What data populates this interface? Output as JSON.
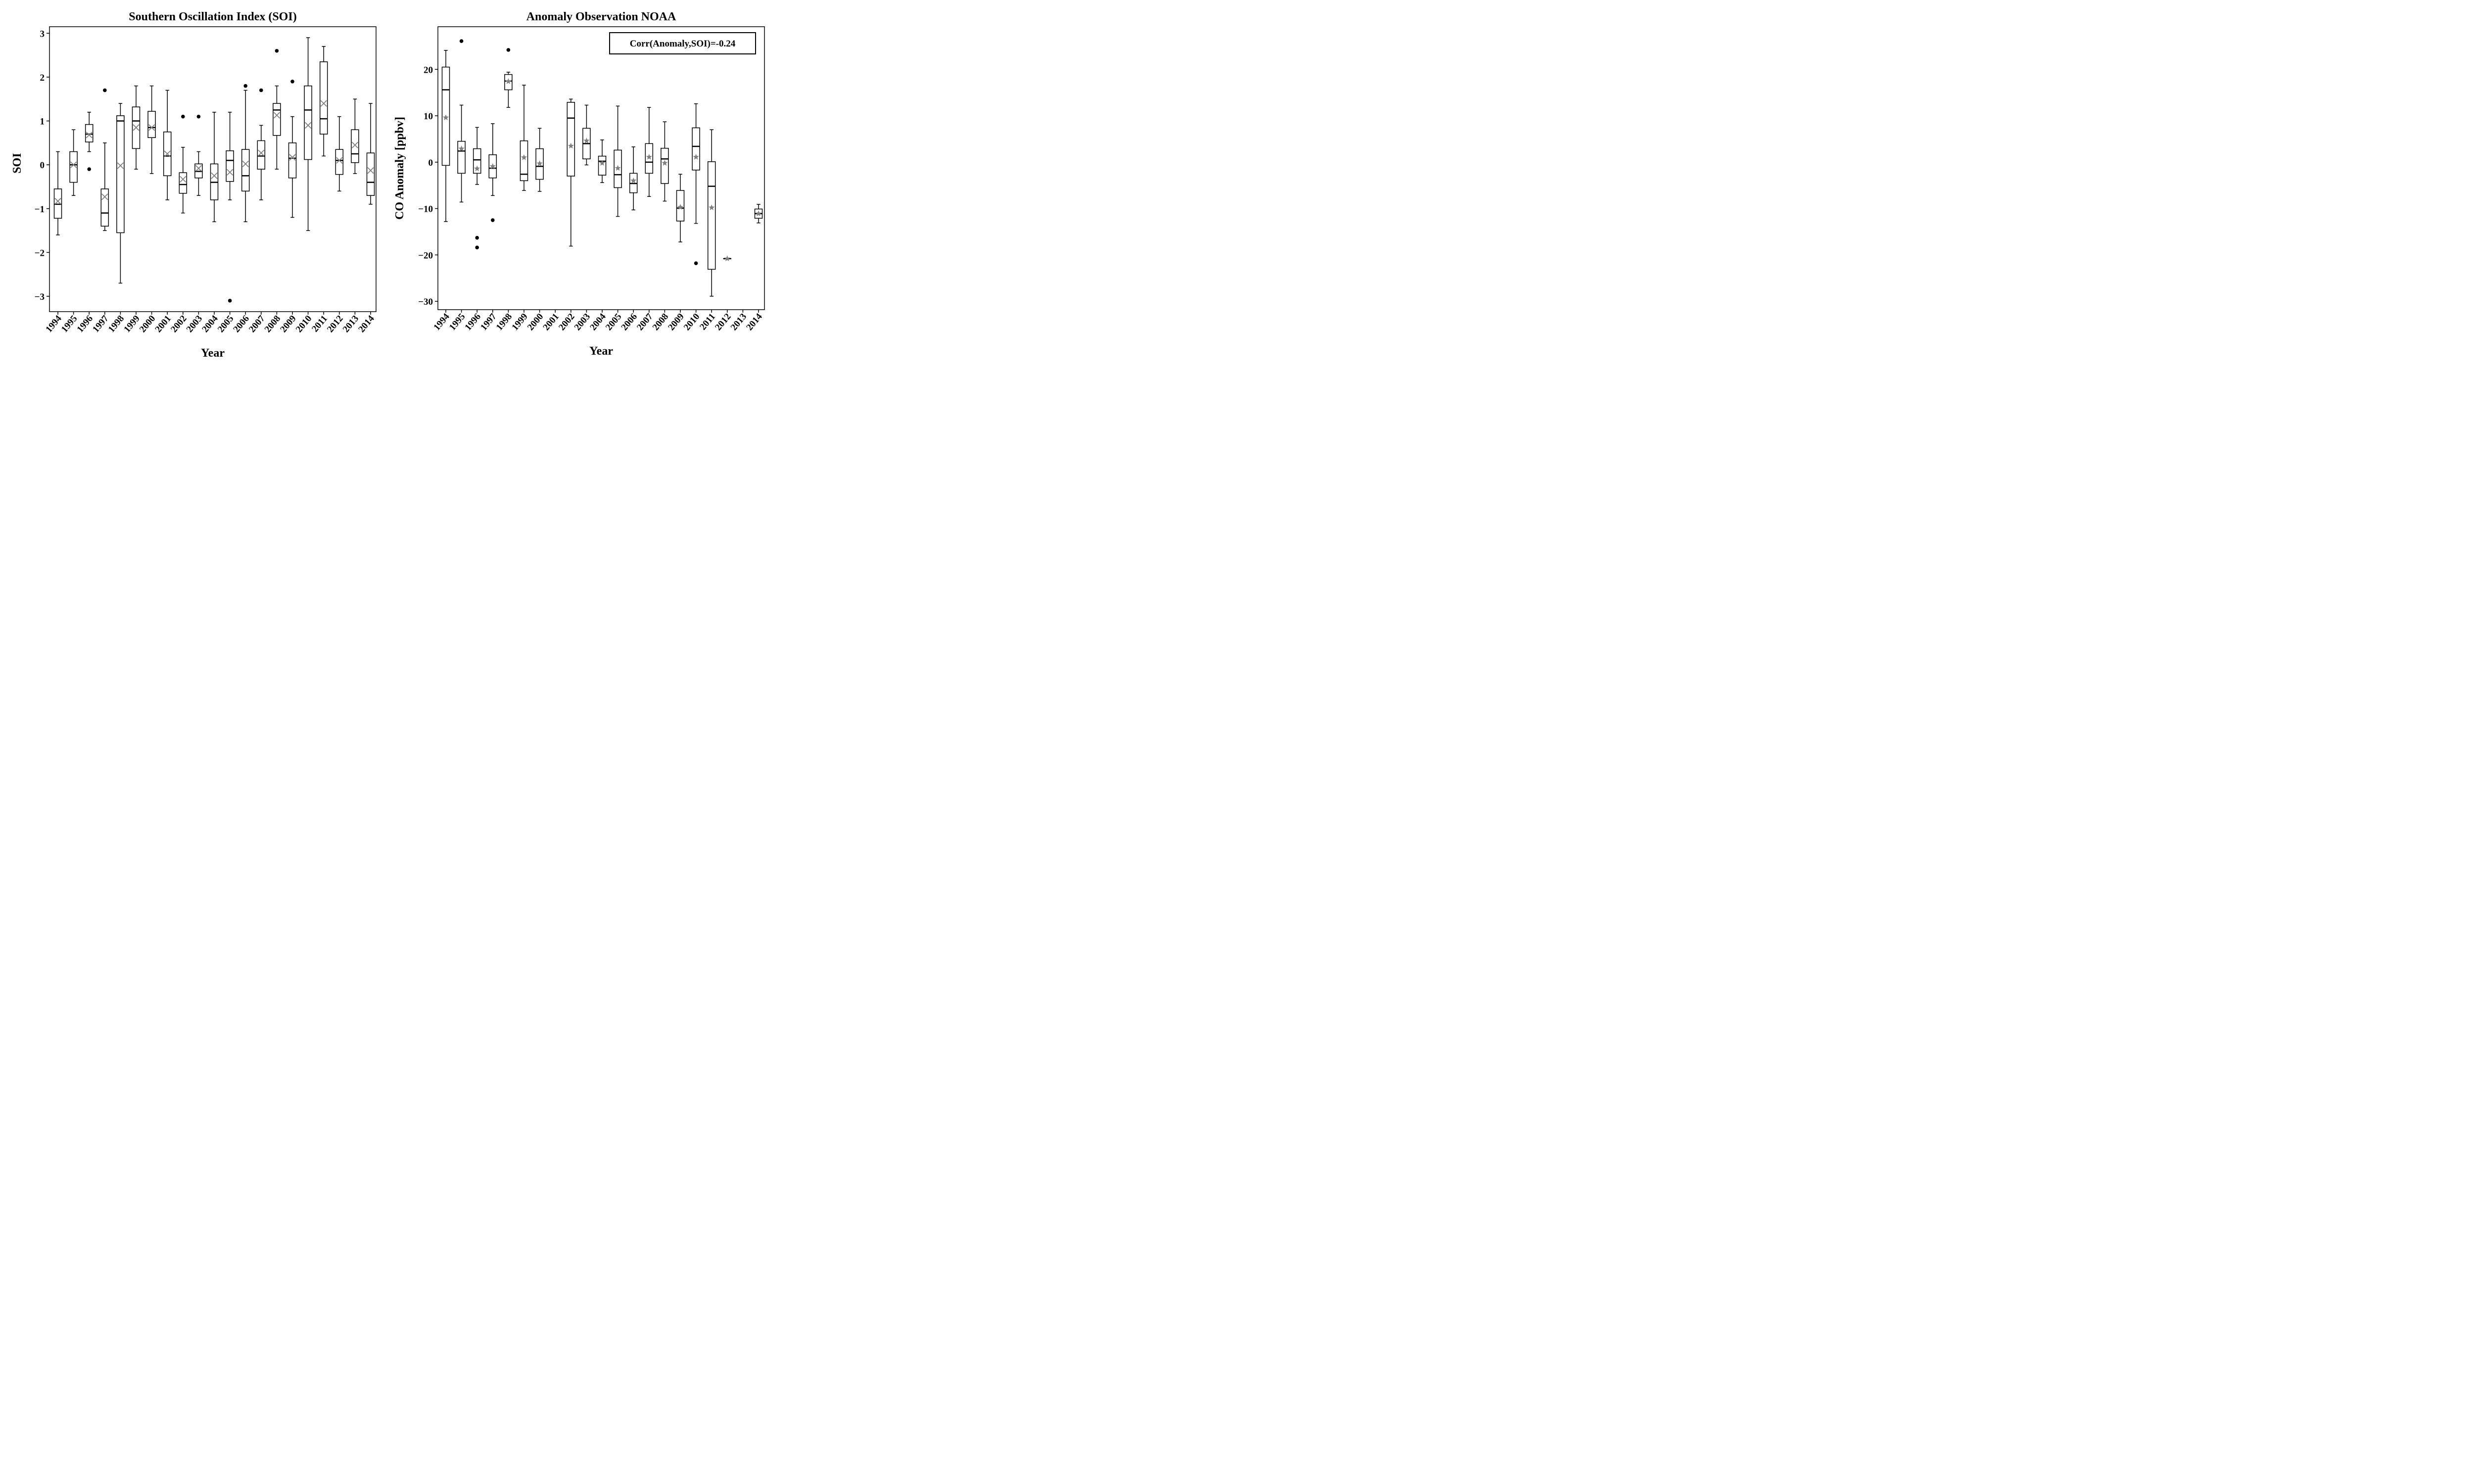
{
  "chart_data": [
    {
      "type": "box",
      "title": "Southern Oscillation Index (SOI)",
      "xlabel": "Year",
      "ylabel": "SOI",
      "ylim": [
        -3.35,
        3.15
      ],
      "yticks": [
        "3",
        "2",
        "1",
        "0",
        "−1",
        "−2",
        "−3"
      ],
      "ytick_values": [
        3,
        2,
        1,
        0,
        -1,
        -2,
        -3
      ],
      "categories": [
        "1994",
        "1995",
        "1996",
        "1997",
        "1998",
        "1999",
        "2000",
        "2001",
        "2002",
        "2003",
        "2004",
        "2005",
        "2006",
        "2007",
        "2008",
        "2009",
        "2010",
        "2011",
        "2012",
        "2013",
        "2014"
      ],
      "mean_marker": "x",
      "boxes": [
        {
          "min": -1.6,
          "q1": -1.22,
          "median": -0.9,
          "q3": -0.55,
          "max": 0.3,
          "mean": -0.83,
          "outliers": []
        },
        {
          "min": -0.7,
          "q1": -0.4,
          "median": 0.0,
          "q3": 0.3,
          "max": 0.8,
          "mean": 0.0,
          "outliers": []
        },
        {
          "min": 0.3,
          "q1": 0.52,
          "median": 0.7,
          "q3": 0.92,
          "max": 1.2,
          "mean": 0.68,
          "outliers": [
            -0.1
          ]
        },
        {
          "min": -1.5,
          "q1": -1.4,
          "median": -1.1,
          "q3": -0.55,
          "max": 0.5,
          "mean": -0.73,
          "outliers": [
            1.7
          ]
        },
        {
          "min": -2.7,
          "q1": -1.55,
          "median": 1.0,
          "q3": 1.12,
          "max": 1.4,
          "mean": -0.02,
          "outliers": []
        },
        {
          "min": -0.1,
          "q1": 0.37,
          "median": 1.0,
          "q3": 1.32,
          "max": 1.8,
          "mean": 0.85,
          "outliers": []
        },
        {
          "min": -0.2,
          "q1": 0.62,
          "median": 0.85,
          "q3": 1.22,
          "max": 1.8,
          "mean": 0.85,
          "outliers": []
        },
        {
          "min": -0.8,
          "q1": -0.25,
          "median": 0.2,
          "q3": 0.75,
          "max": 1.7,
          "mean": 0.25,
          "outliers": []
        },
        {
          "min": -1.1,
          "q1": -0.65,
          "median": -0.45,
          "q3": -0.18,
          "max": 0.4,
          "mean": -0.33,
          "outliers": [
            1.1
          ]
        },
        {
          "min": -0.7,
          "q1": -0.3,
          "median": -0.15,
          "q3": 0.02,
          "max": 0.3,
          "mean": -0.08,
          "outliers": [
            1.1
          ]
        },
        {
          "min": -1.3,
          "q1": -0.8,
          "median": -0.4,
          "q3": 0.02,
          "max": 1.2,
          "mean": -0.25,
          "outliers": []
        },
        {
          "min": -0.8,
          "q1": -0.38,
          "median": 0.1,
          "q3": 0.32,
          "max": 1.2,
          "mean": -0.17,
          "outliers": [
            -3.1
          ]
        },
        {
          "min": -1.3,
          "q1": -0.6,
          "median": -0.25,
          "q3": 0.35,
          "max": 1.7,
          "mean": 0.02,
          "outliers": [
            1.8
          ]
        },
        {
          "min": -0.8,
          "q1": -0.1,
          "median": 0.2,
          "q3": 0.55,
          "max": 0.9,
          "mean": 0.27,
          "outliers": [
            1.7
          ]
        },
        {
          "min": -0.1,
          "q1": 0.67,
          "median": 1.25,
          "q3": 1.4,
          "max": 1.8,
          "mean": 1.13,
          "outliers": [
            2.6
          ]
        },
        {
          "min": -1.2,
          "q1": -0.3,
          "median": 0.15,
          "q3": 0.5,
          "max": 1.1,
          "mean": 0.17,
          "outliers": [
            1.9
          ]
        },
        {
          "min": -1.5,
          "q1": 0.12,
          "median": 1.25,
          "q3": 1.8,
          "max": 2.9,
          "mean": 0.9,
          "outliers": []
        },
        {
          "min": 0.2,
          "q1": 0.7,
          "median": 1.05,
          "q3": 2.35,
          "max": 2.7,
          "mean": 1.4,
          "outliers": []
        },
        {
          "min": -0.6,
          "q1": -0.22,
          "median": 0.1,
          "q3": 0.35,
          "max": 1.1,
          "mean": 0.1,
          "outliers": []
        },
        {
          "min": -0.2,
          "q1": 0.05,
          "median": 0.25,
          "q3": 0.8,
          "max": 1.5,
          "mean": 0.45,
          "outliers": []
        },
        {
          "min": -0.9,
          "q1": -0.7,
          "median": -0.4,
          "q3": 0.27,
          "max": 1.4,
          "mean": -0.13,
          "outliers": []
        }
      ]
    },
    {
      "type": "box",
      "title": "Anomaly Observation NOAA",
      "xlabel": "Year",
      "ylabel": "CO Anomaly [ppbv]",
      "ylim": [
        -31.8,
        29.2
      ],
      "yticks": [
        "20",
        "10",
        "0",
        "−10",
        "−20",
        "−30"
      ],
      "ytick_values": [
        20,
        10,
        0,
        -10,
        -20,
        -30
      ],
      "categories": [
        "1994",
        "1995",
        "1996",
        "1997",
        "1998",
        "1999",
        "2000",
        "2001",
        "2002",
        "2003",
        "2004",
        "2005",
        "2006",
        "2007",
        "2008",
        "2009",
        "2010",
        "2011",
        "2012",
        "2013",
        "2014"
      ],
      "mean_marker": "star",
      "annotation": "Corr(Anomaly,SOI)=-0.24",
      "boxes": [
        {
          "min": -12.8,
          "q1": -0.7,
          "median": 15.6,
          "q3": 20.5,
          "max": 24.1,
          "mean": 9.6,
          "outliers": []
        },
        {
          "min": -8.6,
          "q1": -2.4,
          "median": 2.4,
          "q3": 4.5,
          "max": 12.3,
          "mean": 2.9,
          "outliers": [
            26.1
          ]
        },
        {
          "min": -4.8,
          "q1": -2.4,
          "median": 0.5,
          "q3": 2.9,
          "max": 7.5,
          "mean": -1.4,
          "outliers": [
            -16.3,
            -18.4
          ]
        },
        {
          "min": -7.2,
          "q1": -3.4,
          "median": -1.3,
          "q3": 1.6,
          "max": 8.3,
          "mean": -0.9,
          "outliers": [
            -12.5
          ]
        },
        {
          "min": 11.8,
          "q1": 15.6,
          "median": 17.5,
          "q3": 18.9,
          "max": 19.4,
          "mean": 17.4,
          "outliers": [
            24.2
          ]
        },
        {
          "min": -6.1,
          "q1": -4.0,
          "median": -2.6,
          "q3": 4.6,
          "max": 16.6,
          "mean": 1.0,
          "outliers": []
        },
        {
          "min": -6.3,
          "q1": -3.7,
          "median": -0.9,
          "q3": 2.9,
          "max": 7.3,
          "mean": -0.3,
          "outliers": []
        },
        null,
        {
          "min": -18.1,
          "q1": -3.0,
          "median": 9.5,
          "q3": 12.9,
          "max": 13.6,
          "mean": 3.5,
          "outliers": []
        },
        {
          "min": -0.6,
          "q1": 0.7,
          "median": 4.0,
          "q3": 7.3,
          "max": 12.3,
          "mean": 4.6,
          "outliers": []
        },
        {
          "min": -4.4,
          "q1": -2.8,
          "median": 0.2,
          "q3": 1.3,
          "max": 4.8,
          "mean": -0.2,
          "outliers": []
        },
        {
          "min": -11.7,
          "q1": -5.5,
          "median": -2.7,
          "q3": 2.6,
          "max": 12.1,
          "mean": -1.3,
          "outliers": []
        },
        {
          "min": -10.3,
          "q1": -6.6,
          "median": -4.6,
          "q3": -2.4,
          "max": 3.3,
          "mean": -4.0,
          "outliers": []
        },
        {
          "min": -7.4,
          "q1": -2.4,
          "median": 0.0,
          "q3": 4.0,
          "max": 11.8,
          "mean": 1.1,
          "outliers": []
        },
        {
          "min": -8.4,
          "q1": -4.6,
          "median": 0.7,
          "q3": 3.0,
          "max": 8.7,
          "mean": -0.2,
          "outliers": []
        },
        {
          "min": -17.2,
          "q1": -12.7,
          "median": -9.9,
          "q3": -6.1,
          "max": -2.6,
          "mean": -9.7,
          "outliers": []
        },
        {
          "min": -13.2,
          "q1": -1.7,
          "median": 3.4,
          "q3": 7.4,
          "max": 12.6,
          "mean": 1.1,
          "outliers": [
            -21.8
          ]
        },
        {
          "min": -28.9,
          "q1": -23.1,
          "median": -5.2,
          "q3": 0.1,
          "max": 7.0,
          "mean": -9.8,
          "outliers": []
        },
        {
          "min": -20.8,
          "q1": -20.8,
          "median": -20.8,
          "q3": -20.8,
          "max": -20.8,
          "mean": -20.8,
          "outliers": []
        },
        null,
        {
          "min": -13.1,
          "q1": -12.1,
          "median": -11.1,
          "q3": -10.1,
          "max": -9.1,
          "mean": -11.1,
          "outliers": []
        }
      ]
    }
  ]
}
